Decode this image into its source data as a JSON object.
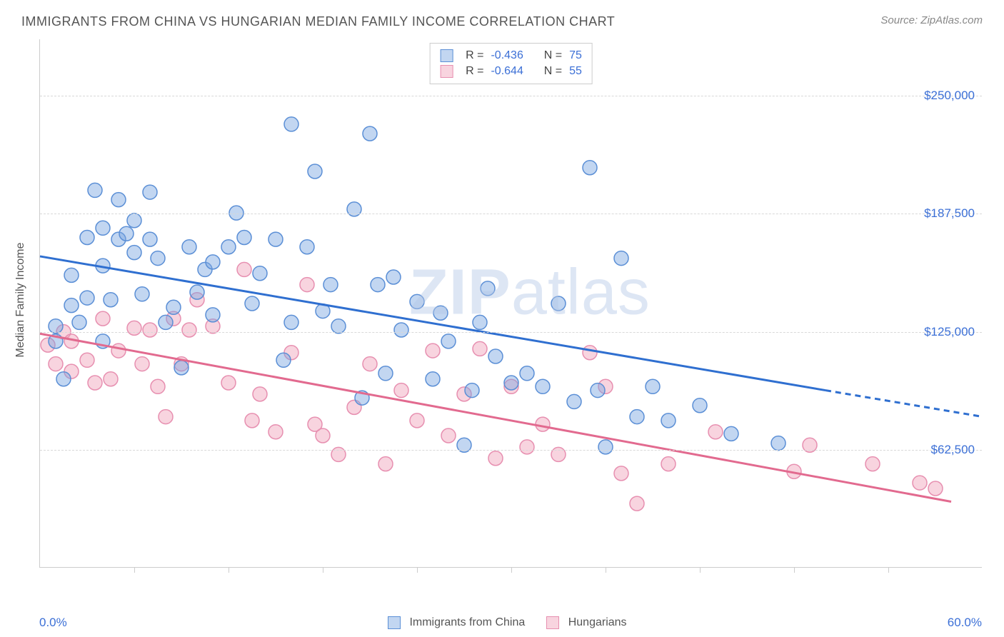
{
  "header": {
    "title": "IMMIGRANTS FROM CHINA VS HUNGARIAN MEDIAN FAMILY INCOME CORRELATION CHART",
    "source_prefix": "Source: ",
    "source_name": "ZipAtlas.com"
  },
  "chart": {
    "type": "scatter",
    "y_axis_label": "Median Family Income",
    "xlim": [
      0,
      60
    ],
    "ylim": [
      0,
      280000
    ],
    "x_min_label": "0.0%",
    "x_max_label": "60.0%",
    "y_ticks": [
      {
        "value": 62500,
        "label": "$62,500"
      },
      {
        "value": 125000,
        "label": "$125,000"
      },
      {
        "value": 187500,
        "label": "$187,500"
      },
      {
        "value": 250000,
        "label": "$250,000"
      }
    ],
    "x_tick_positions": [
      6,
      12,
      18,
      24,
      30,
      36,
      42,
      48,
      54
    ],
    "y_tick_color": "#3b6fd6",
    "grid_color": "#d8d8d8",
    "background_color": "#ffffff",
    "watermark_text_bold": "ZIP",
    "watermark_text_light": "atlas"
  },
  "series": {
    "blue": {
      "label": "Immigrants from China",
      "fill_color": "rgba(120, 165, 225, 0.45)",
      "stroke_color": "#5b8fd6",
      "line_color": "#2f6fd0",
      "marker_radius": 10,
      "R_label": "R =",
      "R_value": "-0.436",
      "N_label": "N =",
      "N_value": "75",
      "trend": {
        "x1": 0,
        "y1": 165000,
        "x2": 50,
        "y2": 94000,
        "x2_dash": 60,
        "y2_dash": 80000
      },
      "points": [
        [
          1,
          128000
        ],
        [
          1,
          120000
        ],
        [
          1.5,
          100000
        ],
        [
          2,
          155000
        ],
        [
          2,
          139000
        ],
        [
          2.5,
          130000
        ],
        [
          3,
          175000
        ],
        [
          3,
          143000
        ],
        [
          3.5,
          200000
        ],
        [
          4,
          180000
        ],
        [
          4,
          160000
        ],
        [
          4,
          120000
        ],
        [
          4.5,
          142000
        ],
        [
          5,
          174000
        ],
        [
          5,
          195000
        ],
        [
          5.5,
          177000
        ],
        [
          6,
          184000
        ],
        [
          6,
          167000
        ],
        [
          6.5,
          145000
        ],
        [
          7,
          199000
        ],
        [
          7,
          174000
        ],
        [
          7.5,
          164000
        ],
        [
          8,
          130000
        ],
        [
          8.5,
          138000
        ],
        [
          9,
          106000
        ],
        [
          9.5,
          170000
        ],
        [
          10,
          146000
        ],
        [
          10.5,
          158000
        ],
        [
          11,
          162000
        ],
        [
          11,
          134000
        ],
        [
          12,
          170000
        ],
        [
          12.5,
          188000
        ],
        [
          13,
          175000
        ],
        [
          13.5,
          140000
        ],
        [
          14,
          156000
        ],
        [
          15,
          174000
        ],
        [
          15.5,
          110000
        ],
        [
          16,
          235000
        ],
        [
          16,
          130000
        ],
        [
          17,
          170000
        ],
        [
          17.5,
          210000
        ],
        [
          18,
          136000
        ],
        [
          18.5,
          150000
        ],
        [
          19,
          128000
        ],
        [
          20,
          190000
        ],
        [
          20.5,
          90000
        ],
        [
          21,
          230000
        ],
        [
          21.5,
          150000
        ],
        [
          22,
          103000
        ],
        [
          22.5,
          154000
        ],
        [
          23,
          126000
        ],
        [
          24,
          141000
        ],
        [
          25,
          100000
        ],
        [
          25.5,
          135000
        ],
        [
          26,
          120000
        ],
        [
          27,
          65000
        ],
        [
          27.5,
          94000
        ],
        [
          28,
          130000
        ],
        [
          28.5,
          148000
        ],
        [
          29,
          112000
        ],
        [
          30,
          98000
        ],
        [
          31,
          103000
        ],
        [
          32,
          96000
        ],
        [
          33,
          140000
        ],
        [
          34,
          88000
        ],
        [
          35,
          212000
        ],
        [
          35.5,
          94000
        ],
        [
          36,
          64000
        ],
        [
          37,
          164000
        ],
        [
          38,
          80000
        ],
        [
          39,
          96000
        ],
        [
          40,
          78000
        ],
        [
          42,
          86000
        ],
        [
          44,
          71000
        ],
        [
          47,
          66000
        ]
      ]
    },
    "pink": {
      "label": "Hungarians",
      "fill_color": "rgba(240, 160, 185, 0.45)",
      "stroke_color": "#e78fb0",
      "line_color": "#e26a8f",
      "marker_radius": 10,
      "R_label": "R =",
      "R_value": "-0.644",
      "N_label": "N =",
      "N_value": "55",
      "trend": {
        "x1": 0,
        "y1": 124000,
        "x2": 58,
        "y2": 35000
      },
      "points": [
        [
          0.5,
          118000
        ],
        [
          1,
          108000
        ],
        [
          1.5,
          125000
        ],
        [
          2,
          120000
        ],
        [
          2,
          104000
        ],
        [
          3,
          110000
        ],
        [
          3.5,
          98000
        ],
        [
          4,
          132000
        ],
        [
          4.5,
          100000
        ],
        [
          5,
          115000
        ],
        [
          6,
          127000
        ],
        [
          6.5,
          108000
        ],
        [
          7,
          126000
        ],
        [
          7.5,
          96000
        ],
        [
          8,
          80000
        ],
        [
          8.5,
          132000
        ],
        [
          9,
          108000
        ],
        [
          9.5,
          126000
        ],
        [
          10,
          142000
        ],
        [
          11,
          128000
        ],
        [
          12,
          98000
        ],
        [
          13,
          158000
        ],
        [
          13.5,
          78000
        ],
        [
          14,
          92000
        ],
        [
          15,
          72000
        ],
        [
          16,
          114000
        ],
        [
          17,
          150000
        ],
        [
          17.5,
          76000
        ],
        [
          18,
          70000
        ],
        [
          19,
          60000
        ],
        [
          20,
          85000
        ],
        [
          21,
          108000
        ],
        [
          22,
          55000
        ],
        [
          23,
          94000
        ],
        [
          24,
          78000
        ],
        [
          25,
          115000
        ],
        [
          26,
          70000
        ],
        [
          27,
          92000
        ],
        [
          28,
          116000
        ],
        [
          29,
          58000
        ],
        [
          30,
          96000
        ],
        [
          31,
          64000
        ],
        [
          32,
          76000
        ],
        [
          33,
          60000
        ],
        [
          35,
          114000
        ],
        [
          36,
          96000
        ],
        [
          37,
          50000
        ],
        [
          38,
          34000
        ],
        [
          40,
          55000
        ],
        [
          43,
          72000
        ],
        [
          48,
          51000
        ],
        [
          49,
          65000
        ],
        [
          53,
          55000
        ],
        [
          56,
          45000
        ],
        [
          57,
          42000
        ]
      ]
    }
  },
  "bottom_legend": {
    "blue_label": "Immigrants from China",
    "pink_label": "Hungarians"
  }
}
